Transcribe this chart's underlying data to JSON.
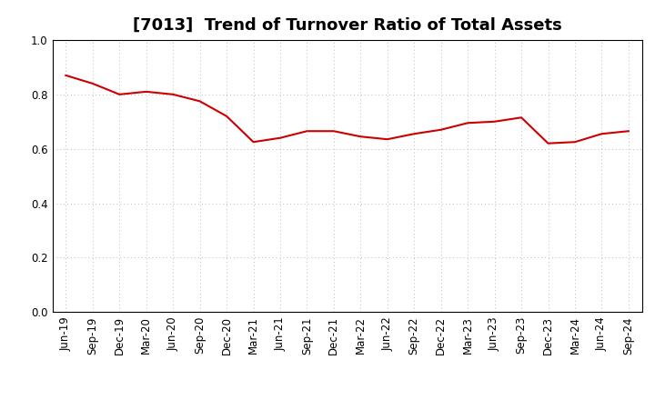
{
  "title": "[7013]  Trend of Turnover Ratio of Total Assets",
  "x_labels": [
    "Jun-19",
    "Sep-19",
    "Dec-19",
    "Mar-20",
    "Jun-20",
    "Sep-20",
    "Dec-20",
    "Mar-21",
    "Jun-21",
    "Sep-21",
    "Dec-21",
    "Mar-22",
    "Jun-22",
    "Sep-22",
    "Dec-22",
    "Mar-23",
    "Jun-23",
    "Sep-23",
    "Dec-23",
    "Mar-24",
    "Jun-24",
    "Sep-24"
  ],
  "values": [
    0.87,
    0.84,
    0.8,
    0.81,
    0.8,
    0.775,
    0.72,
    0.625,
    0.64,
    0.665,
    0.665,
    0.645,
    0.635,
    0.655,
    0.67,
    0.695,
    0.7,
    0.715,
    0.62,
    0.625,
    0.655,
    0.665
  ],
  "line_color": "#cc0000",
  "line_width": 1.5,
  "ylim": [
    0.0,
    1.0
  ],
  "yticks": [
    0.0,
    0.2,
    0.4,
    0.6,
    0.8,
    1.0
  ],
  "title_fontsize": 13,
  "background_color": "#ffffff",
  "grid_color": "#bbbbbb",
  "tick_label_fontsize": 8.5
}
